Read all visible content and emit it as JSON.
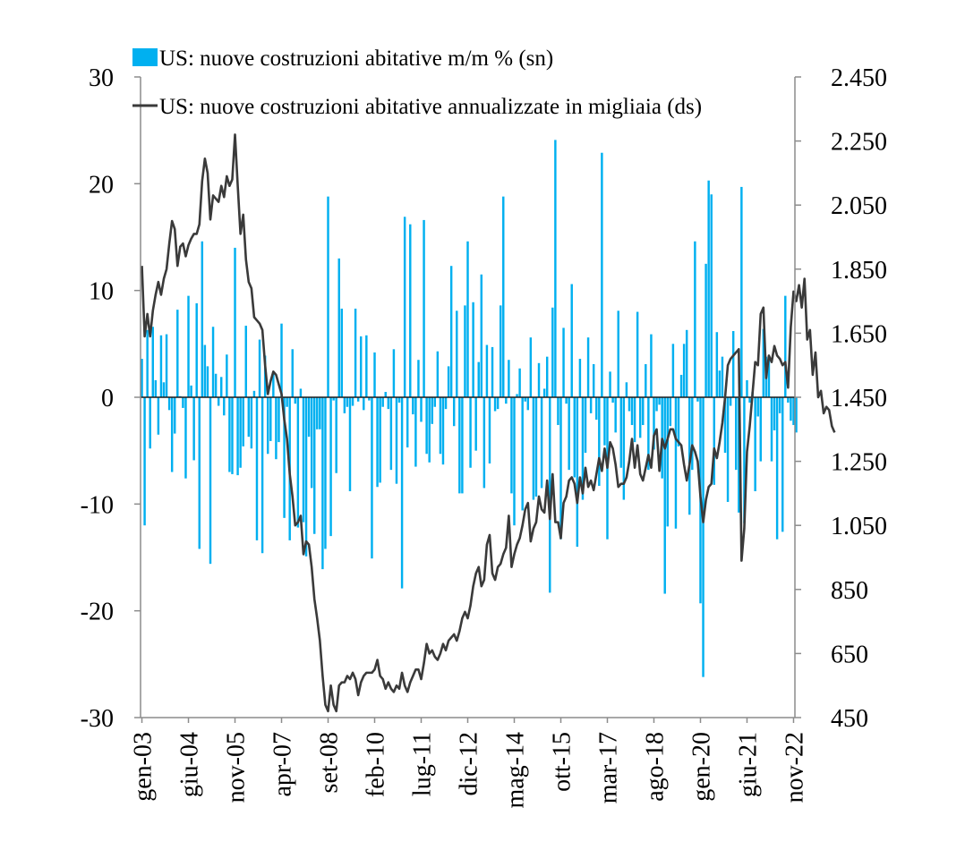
{
  "chart_data": {
    "type": "bar+line",
    "title": "",
    "legend": [
      {
        "label": "US: nuove costruzioni abitative m/m % (sn)",
        "symbol": "bar",
        "color": "#00b0f0"
      },
      {
        "label": "US: nuove costruzioni abitative annualizzate in migliaia (ds)",
        "symbol": "line",
        "color": "#3a3a3a"
      }
    ],
    "legend_position": "top",
    "grid": false,
    "x_axis": {
      "tick_labels": [
        "gen-03",
        "giu-04",
        "nov-05",
        "apr-07",
        "set-08",
        "feb-10",
        "lug-11",
        "dic-12",
        "mag-14",
        "ott-15",
        "mar-17",
        "ago-18",
        "gen-20",
        "giu-21",
        "nov-22"
      ],
      "months": 239
    },
    "y_left": {
      "min": -30,
      "max": 30,
      "ticks": [
        30,
        20,
        10,
        0,
        -10,
        -20,
        -30
      ],
      "tick_labels": [
        "30",
        "20",
        "10",
        "0",
        "-10",
        "-20",
        "-30"
      ]
    },
    "y_right": {
      "min": 450,
      "max": 2450,
      "ticks": [
        2450,
        2250,
        2050,
        1850,
        1650,
        1450,
        1250,
        1050,
        850,
        650,
        450
      ],
      "tick_labels": [
        "2.450",
        "2.250",
        "2.050",
        "1.850",
        "1.650",
        "1.450",
        "1.250",
        "1.050",
        "850",
        "650",
        "450"
      ]
    },
    "series": [
      {
        "name": "US: nuove costruzioni abitative m/m % (sn)",
        "kind": "bar",
        "axis": "left",
        "color": "#00b0f0",
        "values": [
          3.6,
          -12,
          6.3,
          -4.8,
          6.6,
          1.6,
          -3.5,
          5.8,
          1.4,
          5.9,
          -1.2,
          -7,
          -3.4,
          8.2,
          0.1,
          -1,
          -7.6,
          9.5,
          1.1,
          -5.9,
          8.8,
          -14.2,
          14.6,
          4.9,
          2.9,
          -15.6,
          6.6,
          2.2,
          -0.8,
          1.9,
          -1.7,
          4,
          -7,
          -7.2,
          14,
          -7.3,
          -6.6,
          -4.6,
          6.7,
          -3.7,
          -4.8,
          0.6,
          -13.4,
          5.4,
          -14.6,
          3.9,
          -5.3,
          -4.1,
          2.3,
          -5.8,
          -4.2,
          6.9,
          -11.3,
          -0.9,
          -13.4,
          4.5,
          -0.6,
          -12.2,
          0.8,
          -11.7,
          -14.9,
          -3.7,
          -8.5,
          -12.8,
          -3,
          -3,
          -16.1,
          -14.2,
          18.8,
          -13,
          -0.3,
          -7.1,
          13,
          8.3,
          -1.5,
          -0.9,
          -8.8,
          -0.8,
          8.3,
          -0.4,
          5.7,
          -1.2,
          5.8,
          -0.3,
          -15.1,
          4.2,
          -8.4,
          -8,
          -0.9,
          0.5,
          -1.1,
          -6.8,
          4.5,
          -8.1,
          -0.5,
          -17.9,
          16.9,
          -4.7,
          16.2,
          -1.6,
          -6.5,
          3.5,
          -2.3,
          16.6,
          -5.3,
          -6.1,
          -2.5,
          -0.9,
          4.3,
          -5.3,
          -6.3,
          -1.1,
          2.9,
          12.3,
          -2.7,
          8.1,
          -9,
          -9,
          8.6,
          14.6,
          -6.6,
          8.9,
          -5,
          3.3,
          11.5,
          -8.5,
          4.9,
          -6.2,
          4.7,
          -1.3,
          -1.1,
          8.6,
          18.8,
          -0.6,
          3.5,
          -9,
          -12,
          0.3,
          2.7,
          -10.6,
          -0.4,
          -1.2,
          5.6,
          -9.6,
          -9.3,
          3.2,
          -8.5,
          0.8,
          3.8,
          -18.3,
          8.4,
          24.1,
          -2.6,
          -13.3,
          6.5,
          -0.6,
          -6.8,
          10.6,
          -7.5,
          -14,
          3.6,
          -9.6,
          -5.2,
          5.6,
          -1.5,
          3.1,
          -2.1,
          -8.3,
          22.9,
          -4.5,
          -13.3,
          2.4,
          -0.5,
          -3.3,
          8.1,
          -6.6,
          -9.6,
          1.4,
          -1.3,
          -2.6,
          -4.2,
          8,
          -3.8,
          -2.6,
          3.1,
          -6.8,
          5.9,
          -4.9,
          -1.3,
          -0.7,
          -7.6,
          -18.4,
          -12.1,
          -2.7,
          5,
          -12.3,
          -4.6,
          2.1,
          5,
          6.3,
          -11,
          -6.8,
          14.6,
          -0.4,
          -19.3,
          -26.2,
          12.5,
          20.3,
          19,
          -8.2,
          6.1,
          2.5,
          3.8,
          -5.2,
          -9.8,
          -0.8,
          6.2,
          -6.8,
          -10.8,
          19.7,
          -11.8,
          1.6,
          -0.5,
          0.5,
          -8.8,
          -1.8,
          -6,
          6.4,
          3.8,
          3.7,
          -6,
          -3.1,
          -13.3,
          -1.5,
          -12.6,
          9.5,
          -0.5,
          -2.2,
          -2.6,
          -3.3
        ]
      },
      {
        "name": "US: nuove costruzioni abitative annualizzate in migliaia (ds)",
        "kind": "line",
        "axis": "right",
        "color": "#3a3a3a",
        "values": [
          1860,
          1640,
          1710,
          1640,
          1720,
          1770,
          1810,
          1770,
          1820,
          1850,
          1930,
          2000,
          1975,
          1860,
          1920,
          1930,
          1890,
          1925,
          1945,
          1960,
          1960,
          1990,
          2125,
          2195,
          2150,
          2005,
          2080,
          2070,
          2060,
          2110,
          2075,
          2140,
          2110,
          2130,
          2270,
          2110,
          1960,
          2020,
          1880,
          1810,
          1790,
          1700,
          1690,
          1680,
          1660,
          1550,
          1460,
          1500,
          1530,
          1520,
          1490,
          1460,
          1380,
          1320,
          1210,
          1140,
          1050,
          1060,
          1080,
          960,
          1000,
          990,
          920,
          820,
          760,
          690,
          580,
          490,
          470,
          550,
          490,
          470,
          550,
          560,
          560,
          580,
          570,
          590,
          570,
          520,
          560,
          580,
          590,
          590,
          590,
          600,
          630,
          580,
          570,
          540,
          560,
          540,
          530,
          550,
          540,
          590,
          550,
          530,
          560,
          580,
          600,
          600,
          570,
          620,
          680,
          650,
          660,
          640,
          630,
          650,
          680,
          660,
          690,
          700,
          710,
          690,
          720,
          760,
          780,
          760,
          800,
          860,
          900,
          920,
          860,
          880,
          990,
          1020,
          900,
          880,
          920,
          930,
          960,
          980,
          1080,
          920,
          960,
          990,
          1010,
          1050,
          1100,
          1120,
          1000,
          1040,
          1060,
          1140,
          1100,
          1090,
          1190,
          1070,
          1210,
          1060,
          1060,
          1010,
          1120,
          1140,
          1190,
          1200,
          1180,
          1120,
          1200,
          1150,
          1230,
          1170,
          1190,
          1160,
          1210,
          1260,
          1220,
          1290,
          1230,
          1310,
          1290,
          1240,
          1170,
          1180,
          1180,
          1200,
          1250,
          1320,
          1230,
          1300,
          1210,
          1190,
          1230,
          1270,
          1230,
          1330,
          1350,
          1220,
          1320,
          1290,
          1320,
          1350,
          1350,
          1320,
          1310,
          1300,
          1240,
          1190,
          1240,
          1300,
          1280,
          1250,
          1140,
          1060,
          1130,
          1170,
          1180,
          1290,
          1260,
          1310,
          1370,
          1450,
          1550,
          1570,
          1580,
          1590,
          1600,
          940,
          1040,
          1280,
          1360,
          1460,
          1560,
          1550,
          1710,
          1730,
          1510,
          1580,
          1560,
          1610,
          1580,
          1570,
          1550,
          1560,
          1480,
          1670,
          1780,
          1750,
          1800,
          1730,
          1820,
          1630,
          1660,
          1520,
          1590,
          1450,
          1470,
          1400,
          1420,
          1410,
          1360,
          1340
        ]
      }
    ]
  }
}
